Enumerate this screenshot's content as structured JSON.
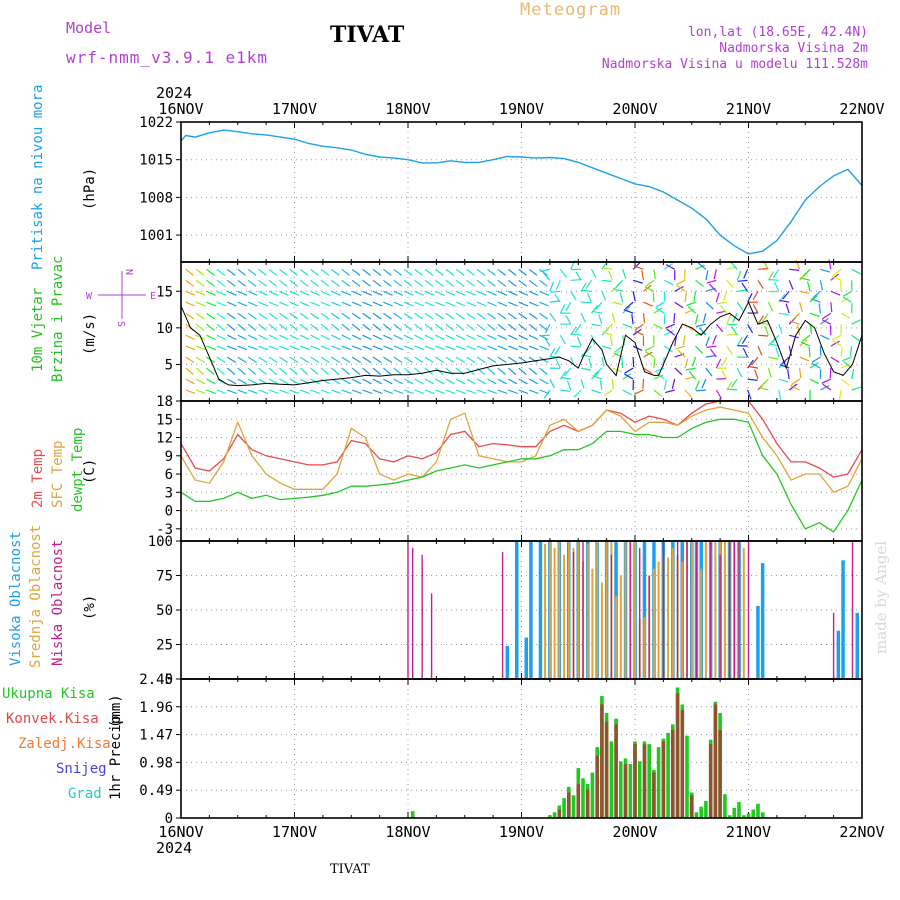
{
  "header": {
    "model_label": "Model",
    "model_name": "wrf-nmm_v3.9.1 e1km",
    "station": "TIVAT",
    "title": "Meteogram",
    "location": "lon,lat (18.65E, 42.4N)",
    "height": "Nadmorska Visina 2m",
    "model_height": "Nadmorska Visina u modelu 111.528m",
    "footer": "TIVAT",
    "credit": "made by Angel"
  },
  "colors": {
    "pressure": "#1ea0ea",
    "wind_label": "#22c022",
    "temp2m": "#e84c4c",
    "sfc": "#e0a43c",
    "dew": "#22c822",
    "high_cloud": "#1ea0ea",
    "mid_cloud": "#e0a43c",
    "low_cloud": "#c0208e",
    "total_precip": "#22c822",
    "conv_precip": "#e04848",
    "frozen_precip": "#f07838",
    "snow": "#4444dd",
    "hail": "#22c8c8",
    "header_purple": "#b040d0",
    "title_orange": "#e8b870"
  },
  "chart_data": [
    {
      "type": "line",
      "panel": "pressure",
      "x_date_ticks": [
        "16NOV",
        "17NOV",
        "18NOV",
        "19NOV",
        "20NOV",
        "21NOV",
        "22NOV"
      ],
      "x_year": "2024",
      "xlim": [
        0,
        144
      ],
      "ylim": [
        996,
        1022
      ],
      "yticks": [
        1001,
        1008,
        1015,
        1022
      ],
      "ylabel": "Pritisak na nivou mora",
      "unit": "(hPa)",
      "grid": true,
      "series": [
        {
          "x": [
            0,
            1,
            3,
            6,
            9,
            12,
            15,
            18,
            21,
            24,
            27,
            30,
            33,
            36,
            39,
            42,
            45,
            48,
            51,
            54,
            57,
            60,
            63,
            66,
            69,
            72,
            75,
            78,
            81,
            84,
            87,
            90,
            93,
            96,
            99,
            102,
            105,
            108,
            111,
            114,
            117,
            120,
            123,
            126,
            129,
            132,
            135,
            138,
            141,
            144
          ],
          "values": [
            1018.5,
            1019.5,
            1019.2,
            1020.0,
            1020.5,
            1020.2,
            1019.8,
            1019.6,
            1019.2,
            1018.8,
            1018.0,
            1017.5,
            1017.2,
            1016.8,
            1016.0,
            1015.5,
            1015.3,
            1015.0,
            1014.4,
            1014.4,
            1014.8,
            1014.5,
            1014.5,
            1015.0,
            1015.6,
            1015.5,
            1015.3,
            1015.4,
            1015.2,
            1014.5,
            1013.5,
            1012.5,
            1011.5,
            1010.5,
            1010.0,
            1009.0,
            1007.5,
            1006.0,
            1004.0,
            1001.0,
            999.0,
            997.5,
            998.0,
            1000.0,
            1003.5,
            1007.5,
            1010.0,
            1012.0,
            1013.2,
            1010.2
          ]
        }
      ]
    },
    {
      "type": "line",
      "panel": "wind",
      "xlim": [
        0,
        144
      ],
      "ylim": [
        0,
        19
      ],
      "yticks": [
        5,
        10,
        15
      ],
      "ylabel_1": "10m Vjetar",
      "ylabel_2": "Brzina i Pravac",
      "unit": "(m/s)",
      "compass": {
        "w": "W",
        "e": "E",
        "n": "N",
        "s": "S"
      },
      "grid": true,
      "series": [
        {
          "name": "speed",
          "x": [
            0,
            2,
            4,
            6,
            8,
            10,
            12,
            15,
            18,
            21,
            24,
            27,
            30,
            33,
            36,
            39,
            42,
            45,
            48,
            51,
            54,
            57,
            60,
            63,
            66,
            69,
            72,
            75,
            78,
            80,
            82,
            84,
            85,
            87,
            89,
            90,
            92,
            94,
            96,
            98,
            100,
            101,
            102,
            104,
            106,
            108,
            110,
            112,
            114,
            116,
            118,
            120,
            122,
            124,
            126,
            128,
            130,
            132,
            134,
            136,
            138,
            140,
            142,
            144
          ],
          "values": [
            13,
            10,
            9,
            6,
            3,
            2.2,
            2.1,
            2.2,
            2.4,
            2.3,
            2.2,
            2.5,
            2.8,
            3.0,
            3.2,
            3.5,
            3.4,
            3.6,
            3.6,
            3.8,
            4.2,
            3.8,
            3.8,
            4.3,
            4.8,
            5.0,
            5.2,
            5.5,
            5.8,
            6.0,
            5.5,
            4.5,
            6.0,
            8.5,
            7.0,
            5.0,
            3.5,
            9.0,
            8.0,
            4.0,
            3.5,
            3.5,
            5.0,
            8.0,
            10.5,
            10.0,
            9.0,
            10.5,
            11.5,
            12.0,
            11.0,
            13.5,
            10.5,
            11.0,
            8.0,
            4.5,
            9.0,
            11.0,
            10.0,
            6.5,
            4.0,
            3.5,
            5.0,
            9.0
          ]
        }
      ]
    },
    {
      "type": "line",
      "panel": "temperature",
      "xlim": [
        0,
        144
      ],
      "ylim": [
        -5,
        18
      ],
      "yticks": [
        -3,
        0,
        3,
        6,
        9,
        12,
        15,
        18
      ],
      "ylabel_1": "2m Temp",
      "ylabel_2": "SFC Temp",
      "ylabel_3": "dewpt Temp",
      "unit": "(C)",
      "grid": true,
      "series": [
        {
          "name": "2m Temp",
          "x": [
            0,
            3,
            6,
            9,
            12,
            15,
            18,
            21,
            24,
            27,
            30,
            33,
            36,
            39,
            42,
            45,
            48,
            51,
            54,
            57,
            60,
            63,
            66,
            69,
            72,
            75,
            78,
            81,
            84,
            87,
            90,
            93,
            96,
            99,
            102,
            105,
            108,
            111,
            114,
            117,
            120,
            123,
            126,
            129,
            132,
            135,
            138,
            141,
            144
          ],
          "values": [
            11,
            7,
            6.5,
            8.5,
            12.5,
            10,
            9,
            8.5,
            8,
            7.5,
            7.5,
            8,
            11.5,
            11,
            8.5,
            8,
            9,
            8.5,
            9.5,
            12.5,
            13,
            10.5,
            11,
            10.8,
            10.5,
            10.5,
            13,
            14,
            13,
            14,
            16.5,
            16,
            14.5,
            15.5,
            15,
            14,
            16,
            17.5,
            18,
            18,
            18,
            15,
            11,
            8,
            8,
            7,
            5.5,
            6,
            10
          ]
        },
        {
          "name": "SFC Temp",
          "x": [
            0,
            3,
            6,
            9,
            12,
            15,
            18,
            21,
            24,
            27,
            30,
            33,
            36,
            39,
            42,
            45,
            48,
            51,
            54,
            57,
            60,
            63,
            66,
            69,
            72,
            75,
            78,
            81,
            84,
            87,
            90,
            93,
            96,
            99,
            102,
            105,
            108,
            111,
            114,
            117,
            120,
            123,
            126,
            129,
            132,
            135,
            138,
            141,
            144
          ],
          "values": [
            9,
            5,
            4.5,
            8,
            14.5,
            9,
            6,
            4.5,
            3.5,
            3.5,
            3.5,
            6,
            13.5,
            12,
            6,
            5,
            6,
            5.5,
            8,
            15,
            16,
            9,
            8.5,
            8,
            8,
            9,
            14,
            15,
            13,
            14,
            16.5,
            15.5,
            13,
            14.5,
            14.5,
            14,
            15.5,
            16.5,
            17,
            16.5,
            16,
            12,
            9,
            5,
            6,
            6,
            3,
            4,
            8.5
          ]
        },
        {
          "name": "dewpt Temp",
          "x": [
            0,
            3,
            6,
            9,
            12,
            15,
            18,
            21,
            24,
            27,
            30,
            33,
            36,
            39,
            42,
            45,
            48,
            51,
            54,
            57,
            60,
            63,
            66,
            69,
            72,
            75,
            78,
            81,
            84,
            87,
            90,
            93,
            96,
            99,
            102,
            105,
            108,
            111,
            114,
            117,
            120,
            123,
            126,
            129,
            132,
            135,
            138,
            141,
            144
          ],
          "values": [
            3,
            1.5,
            1.5,
            2,
            3,
            2,
            2.5,
            1.8,
            2,
            2.2,
            2.5,
            3,
            4,
            4,
            4.2,
            4.5,
            5,
            5.5,
            6.5,
            7,
            7.5,
            7,
            7.5,
            8,
            8.5,
            8.5,
            9,
            10,
            10,
            11,
            13,
            13,
            12.5,
            12.5,
            12,
            12,
            13.5,
            14.5,
            15,
            15,
            14.5,
            9,
            6,
            1,
            -3,
            -2,
            -3.5,
            0,
            5
          ]
        }
      ]
    },
    {
      "type": "bar",
      "panel": "cloud",
      "xlim": [
        0,
        144
      ],
      "ylim": [
        0,
        100
      ],
      "yticks": [
        0,
        25,
        50,
        75,
        100
      ],
      "ylabel_1": "Visoka Oblacnost",
      "ylabel_2": "Srednja Oblacnost",
      "ylabel_3": "Niska Oblacnost",
      "unit": "(%)",
      "grid": true,
      "series": [
        {
          "name": "Visoka Oblacnost",
          "x": [
            69,
            71,
            73,
            74,
            76,
            78,
            80,
            82,
            84,
            86,
            88,
            90,
            92,
            94,
            96,
            98,
            100,
            102,
            104,
            106,
            108,
            109,
            110,
            112,
            114,
            116,
            118,
            122,
            123,
            139,
            140,
            143
          ],
          "values": [
            24,
            100,
            30,
            100,
            100,
            100,
            100,
            100,
            100,
            100,
            100,
            100,
            100,
            100,
            100,
            100,
            100,
            100,
            100,
            100,
            100,
            100,
            100,
            100,
            100,
            100,
            100,
            53,
            84,
            35,
            86,
            48
          ]
        },
        {
          "name": "Srednja Oblacnost",
          "x": [
            77,
            78,
            79,
            80,
            81,
            82,
            83,
            84,
            85,
            86,
            87,
            88,
            89,
            90,
            91,
            92,
            93,
            94,
            95,
            96,
            97,
            98,
            99,
            100,
            101,
            102,
            103,
            104,
            105,
            106,
            107,
            108,
            109,
            110,
            111,
            112,
            113,
            114,
            115,
            116,
            117,
            118,
            119
          ],
          "values": [
            98,
            100,
            95,
            100,
            90,
            100,
            95,
            100,
            85,
            98,
            80,
            100,
            70,
            100,
            100,
            60,
            75,
            100,
            100,
            100,
            44,
            45,
            75,
            80,
            85,
            90,
            88,
            95,
            90,
            85,
            100,
            100,
            100,
            80,
            100,
            95,
            100,
            100,
            100,
            100,
            100,
            100,
            95
          ]
        },
        {
          "name": "Niska Oblacnost",
          "x": [
            48,
            49,
            51,
            53,
            68,
            83,
            85,
            91,
            95,
            97,
            99,
            102,
            105,
            107,
            109,
            112,
            114,
            116,
            117,
            118,
            120,
            138,
            142
          ],
          "values": [
            98,
            95,
            90,
            62,
            92,
            92,
            100,
            90,
            100,
            95,
            75,
            100,
            100,
            100,
            100,
            100,
            90,
            100,
            100,
            100,
            100,
            48,
            100
          ]
        }
      ]
    },
    {
      "type": "bar",
      "panel": "precip",
      "xlim": [
        0,
        144
      ],
      "ylim": [
        0,
        2.45
      ],
      "yticks": [
        0,
        0.49,
        0.98,
        1.47,
        1.96,
        2.45
      ],
      "ylabel": "1hr Precip",
      "unit": "(mm)",
      "legend": [
        "Ukupna Kisa",
        "Konvek.Kisa",
        "Zaledj.Kisa",
        "Snijeg",
        "Grad"
      ],
      "grid": true,
      "series": [
        {
          "name": "Ukupna Kisa",
          "x": [
            49,
            78,
            79,
            80,
            81,
            82,
            83,
            84,
            85,
            86,
            87,
            88,
            89,
            90,
            91,
            92,
            93,
            94,
            95,
            96,
            97,
            98,
            99,
            100,
            101,
            102,
            103,
            104,
            105,
            106,
            107,
            108,
            109,
            110,
            111,
            112,
            113,
            114,
            115,
            116,
            117,
            118,
            119,
            120,
            121,
            122,
            123
          ],
          "values": [
            0.12,
            0.05,
            0.1,
            0.22,
            0.35,
            0.55,
            0.4,
            0.88,
            0.7,
            0.6,
            0.8,
            1.25,
            2.15,
            1.85,
            1.35,
            1.75,
            1.0,
            1.05,
            0.95,
            1.35,
            1.0,
            1.35,
            1.3,
            0.85,
            1.25,
            1.4,
            1.5,
            1.65,
            2.3,
            2.0,
            1.45,
            0.45,
            0.1,
            0.2,
            0.3,
            1.38,
            2.05,
            1.85,
            0.42,
            0.05,
            0.18,
            0.28,
            0.05,
            0.08,
            0.15,
            0.25,
            0.1
          ]
        },
        {
          "name": "Konvek.Kisa",
          "x": [
            80,
            82,
            84,
            86,
            88,
            89,
            90,
            92,
            94,
            96,
            98,
            100,
            102,
            104,
            105,
            106,
            108,
            112,
            113,
            114
          ],
          "values": [
            0.15,
            0.45,
            0.6,
            0.5,
            1.1,
            2.0,
            1.7,
            1.65,
            0.95,
            1.3,
            1.3,
            0.8,
            1.35,
            1.55,
            2.2,
            1.9,
            0.4,
            1.3,
            2.0,
            1.55
          ]
        },
        {
          "name": "Zaledj.Kisa",
          "x": [],
          "values": []
        },
        {
          "name": "Snijeg",
          "x": [],
          "values": []
        },
        {
          "name": "Grad",
          "x": [],
          "values": []
        }
      ]
    }
  ]
}
